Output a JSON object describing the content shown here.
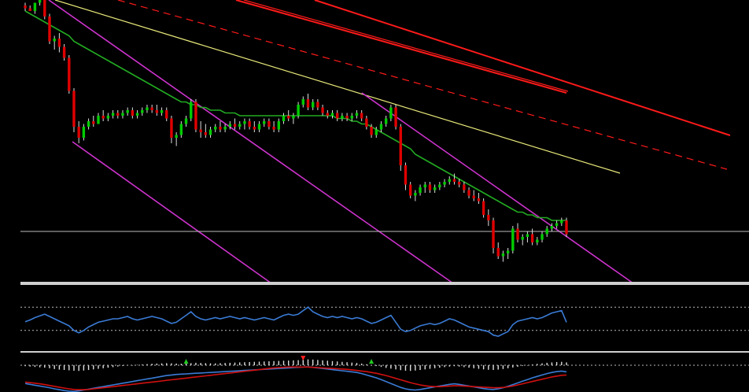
{
  "chart_data": [
    {
      "panel": "price",
      "type": "candlestick",
      "title": "",
      "xlabel": "",
      "ylabel": "",
      "ylim": [
        0,
        100
      ],
      "grid": false,
      "legend": "none",
      "colors": {
        "up": "#00cc00",
        "down": "#e00000",
        "ma": "#22aa22",
        "channel": "#cc33cc",
        "trend_yellow": "#e8e87a",
        "trend_red": "#ff1a1a",
        "support": "#bbbbbb"
      },
      "candles": [
        [
          98,
          99,
          96,
          97
        ],
        [
          97,
          98,
          96,
          96
        ],
        [
          96,
          99,
          95,
          99
        ],
        [
          99,
          101,
          98,
          100
        ],
        [
          100,
          101,
          93,
          94
        ],
        [
          94,
          95,
          84,
          85
        ],
        [
          85,
          87,
          82,
          86
        ],
        [
          86,
          88,
          81,
          83
        ],
        [
          83,
          84,
          78,
          79
        ],
        [
          79,
          80,
          66,
          67
        ],
        [
          67,
          68,
          52,
          54
        ],
        [
          54,
          56,
          48,
          50
        ],
        [
          50,
          55,
          49,
          54
        ],
        [
          54,
          57,
          53,
          56
        ],
        [
          56,
          58,
          54,
          55
        ],
        [
          55,
          59,
          55,
          58
        ],
        [
          58,
          60,
          56,
          57
        ],
        [
          57,
          59,
          56,
          58
        ],
        [
          58,
          60,
          57,
          59
        ],
        [
          59,
          60,
          57,
          58
        ],
        [
          58,
          60,
          57,
          59
        ],
        [
          59,
          61,
          58,
          60
        ],
        [
          60,
          61,
          57,
          58
        ],
        [
          58,
          60,
          57,
          59
        ],
        [
          59,
          61,
          58,
          60
        ],
        [
          60,
          62,
          59,
          61
        ],
        [
          61,
          62,
          59,
          60
        ],
        [
          60,
          62,
          58,
          59
        ],
        [
          59,
          61,
          58,
          60
        ],
        [
          60,
          61,
          56,
          57
        ],
        [
          57,
          58,
          48,
          50
        ],
        [
          50,
          52,
          47,
          51
        ],
        [
          51,
          56,
          50,
          55
        ],
        [
          55,
          58,
          54,
          57
        ],
        [
          57,
          64,
          56,
          63
        ],
        [
          63,
          64,
          52,
          53
        ],
        [
          53,
          56,
          50,
          52
        ],
        [
          52,
          55,
          50,
          51
        ],
        [
          51,
          54,
          50,
          53
        ],
        [
          53,
          55,
          52,
          54
        ],
        [
          54,
          56,
          52,
          53
        ],
        [
          53,
          55,
          52,
          54
        ],
        [
          54,
          56,
          53,
          55
        ],
        [
          55,
          57,
          53,
          54
        ],
        [
          54,
          56,
          53,
          55
        ],
        [
          55,
          57,
          53,
          56
        ],
        [
          56,
          57,
          53,
          54
        ],
        [
          54,
          56,
          52,
          53
        ],
        [
          53,
          56,
          52,
          55
        ],
        [
          55,
          57,
          54,
          56
        ],
        [
          56,
          57,
          53,
          54
        ],
        [
          54,
          56,
          52,
          53
        ],
        [
          53,
          57,
          52,
          56
        ],
        [
          56,
          59,
          55,
          58
        ],
        [
          58,
          60,
          56,
          57
        ],
        [
          57,
          59,
          55,
          58
        ],
        [
          58,
          63,
          57,
          62
        ],
        [
          62,
          65,
          61,
          64
        ],
        [
          64,
          66,
          60,
          61
        ],
        [
          61,
          64,
          60,
          63
        ],
        [
          63,
          64,
          60,
          61
        ],
        [
          61,
          62,
          58,
          59
        ],
        [
          59,
          60,
          57,
          58
        ],
        [
          58,
          60,
          57,
          59
        ],
        [
          59,
          60,
          56,
          57
        ],
        [
          57,
          59,
          56,
          58
        ],
        [
          58,
          59,
          56,
          57
        ],
        [
          57,
          59,
          56,
          58
        ],
        [
          58,
          60,
          57,
          59
        ],
        [
          59,
          60,
          56,
          57
        ],
        [
          57,
          58,
          53,
          54
        ],
        [
          54,
          55,
          50,
          51
        ],
        [
          51,
          54,
          50,
          53
        ],
        [
          53,
          56,
          52,
          55
        ],
        [
          55,
          58,
          54,
          57
        ],
        [
          57,
          62,
          56,
          61
        ],
        [
          61,
          62,
          53,
          54
        ],
        [
          54,
          55,
          38,
          40
        ],
        [
          40,
          41,
          31,
          33
        ],
        [
          33,
          34,
          28,
          29
        ],
        [
          29,
          31,
          27,
          30
        ],
        [
          30,
          33,
          29,
          32
        ],
        [
          32,
          34,
          30,
          33
        ],
        [
          33,
          34,
          30,
          31
        ],
        [
          31,
          33,
          30,
          32
        ],
        [
          32,
          34,
          31,
          33
        ],
        [
          33,
          35,
          32,
          34
        ],
        [
          34,
          36,
          33,
          35
        ],
        [
          35,
          37,
          33,
          34
        ],
        [
          34,
          35,
          32,
          33
        ],
        [
          33,
          34,
          30,
          31
        ],
        [
          31,
          32,
          28,
          29
        ],
        [
          29,
          31,
          27,
          28
        ],
        [
          28,
          30,
          26,
          27
        ],
        [
          27,
          28,
          21,
          22
        ],
        [
          22,
          24,
          18,
          20
        ],
        [
          20,
          21,
          8,
          10
        ],
        [
          10,
          12,
          6,
          7
        ],
        [
          7,
          9,
          5,
          8
        ],
        [
          8,
          10,
          6,
          9
        ],
        [
          9,
          18,
          8,
          17
        ],
        [
          17,
          19,
          12,
          13
        ],
        [
          13,
          15,
          11,
          14
        ],
        [
          14,
          16,
          12,
          15
        ],
        [
          15,
          17,
          11,
          12
        ],
        [
          12,
          14,
          11,
          13
        ],
        [
          13,
          16,
          12,
          15
        ],
        [
          15,
          18,
          14,
          17
        ],
        [
          17,
          19,
          16,
          18
        ],
        [
          18,
          20,
          17,
          19
        ],
        [
          19,
          21,
          18,
          20
        ],
        [
          20,
          21,
          14,
          15
        ]
      ],
      "moving_average": [
        96,
        95,
        94,
        93,
        92,
        91,
        90,
        89,
        88,
        87,
        85,
        84,
        83,
        82,
        81,
        80,
        79,
        78,
        77,
        76,
        75,
        74,
        73,
        72,
        71,
        70,
        69,
        68,
        67,
        66,
        65,
        64,
        63,
        63,
        62,
        62,
        61,
        61,
        60,
        60,
        60,
        59,
        59,
        59,
        58,
        58,
        58,
        58,
        58,
        58,
        58,
        58,
        58,
        58,
        58,
        58,
        58,
        58,
        58,
        58,
        58,
        58,
        58,
        58,
        57,
        57,
        57,
        56,
        56,
        55,
        55,
        54,
        53,
        52,
        51,
        50,
        49,
        48,
        47,
        46,
        44,
        43,
        42,
        41,
        40,
        39,
        38,
        37,
        36,
        35,
        34,
        33,
        32,
        31,
        30,
        29,
        28,
        27,
        26,
        25,
        24,
        23,
        23,
        22,
        22,
        21,
        21,
        21,
        20,
        20,
        20,
        20
      ],
      "support_level": 16
    },
    {
      "panel": "oscillator",
      "type": "line",
      "title": "",
      "xlabel": "",
      "ylabel": "",
      "ylim": [
        0,
        100
      ],
      "levels": [
        70,
        30
      ],
      "series": [
        {
          "color": "#3a7bd5",
          "values": [
            45,
            48,
            52,
            55,
            58,
            54,
            50,
            46,
            42,
            38,
            30,
            26,
            30,
            36,
            40,
            44,
            46,
            48,
            50,
            50,
            52,
            54,
            50,
            48,
            50,
            52,
            54,
            52,
            50,
            46,
            42,
            44,
            50,
            56,
            62,
            54,
            50,
            48,
            50,
            52,
            50,
            52,
            54,
            52,
            50,
            52,
            50,
            48,
            50,
            52,
            50,
            48,
            52,
            56,
            58,
            56,
            58,
            64,
            70,
            62,
            58,
            54,
            52,
            54,
            52,
            54,
            52,
            50,
            52,
            50,
            46,
            42,
            44,
            48,
            52,
            56,
            44,
            32,
            28,
            30,
            34,
            38,
            40,
            42,
            40,
            42,
            46,
            50,
            48,
            44,
            40,
            36,
            34,
            32,
            30,
            28,
            22,
            20,
            24,
            28,
            40,
            46,
            48,
            50,
            52,
            50,
            52,
            56,
            60,
            62,
            64,
            44
          ]
        }
      ]
    },
    {
      "panel": "macd",
      "type": "bar",
      "title": "",
      "xlabel": "",
      "ylabel": "",
      "ylim": [
        -100,
        100
      ],
      "histogram": [
        -10,
        -14,
        -18,
        -22,
        -26,
        -32,
        -40,
        -46,
        -50,
        -54,
        -58,
        -60,
        -56,
        -50,
        -44,
        -38,
        -32,
        -26,
        -20,
        -14,
        -8,
        -4,
        0,
        4,
        8,
        12,
        16,
        18,
        20,
        22,
        20,
        18,
        16,
        18,
        22,
        26,
        24,
        22,
        20,
        20,
        22,
        24,
        26,
        28,
        30,
        32,
        34,
        36,
        38,
        40,
        42,
        44,
        46,
        48,
        50,
        52,
        54,
        58,
        62,
        60,
        56,
        52,
        48,
        44,
        40,
        36,
        32,
        28,
        24,
        18,
        10,
        2,
        -8,
        -18,
        -28,
        -36,
        -44,
        -52,
        -58,
        -60,
        -56,
        -50,
        -44,
        -38,
        -32,
        -26,
        -20,
        -14,
        -10,
        -14,
        -20,
        -26,
        -32,
        -38,
        -44,
        -48,
        -50,
        -46,
        -40,
        -32,
        -24,
        -16,
        -8,
        0,
        8,
        14,
        20,
        26,
        30,
        34,
        36,
        30
      ],
      "series": [
        {
          "color": "#3a7bd5",
          "values": [
            -40,
            -46,
            -52,
            -58,
            -64,
            -70,
            -78,
            -84,
            -90,
            -94,
            -96,
            -92,
            -86,
            -80,
            -74,
            -68,
            -62,
            -56,
            -50,
            -44,
            -38,
            -32,
            -26,
            -20,
            -14,
            -8,
            -2,
            4,
            10,
            16,
            20,
            24,
            26,
            28,
            30,
            32,
            34,
            36,
            38,
            40,
            42,
            44,
            46,
            48,
            50,
            52,
            54,
            56,
            58,
            60,
            62,
            64,
            66,
            68,
            70,
            72,
            74,
            76,
            78,
            74,
            70,
            66,
            62,
            58,
            54,
            50,
            46,
            42,
            38,
            30,
            20,
            10,
            0,
            -12,
            -26,
            -40,
            -54,
            -68,
            -78,
            -84,
            -86,
            -82,
            -76,
            -70,
            -64,
            -58,
            -52,
            -46,
            -42,
            -46,
            -52,
            -58,
            -64,
            -70,
            -76,
            -80,
            -82,
            -78,
            -70,
            -60,
            -48,
            -36,
            -24,
            -12,
            0,
            10,
            20,
            30,
            38,
            44,
            48,
            42
          ]
        },
        {
          "color": "#d01010",
          "values": [
            -30,
            -34,
            -38,
            -42,
            -48,
            -54,
            -60,
            -66,
            -72,
            -78,
            -82,
            -84,
            -84,
            -82,
            -78,
            -74,
            -70,
            -66,
            -62,
            -58,
            -54,
            -50,
            -46,
            -42,
            -38,
            -34,
            -30,
            -26,
            -22,
            -18,
            -14,
            -10,
            -6,
            -2,
            2,
            6,
            10,
            14,
            18,
            22,
            26,
            30,
            34,
            38,
            42,
            46,
            50,
            54,
            58,
            62,
            66,
            70,
            72,
            74,
            76,
            76,
            76,
            76,
            76,
            74,
            72,
            70,
            68,
            66,
            64,
            62,
            60,
            56,
            52,
            48,
            44,
            38,
            32,
            24,
            16,
            6,
            -4,
            -14,
            -24,
            -34,
            -42,
            -50,
            -56,
            -60,
            -62,
            -62,
            -60,
            -58,
            -56,
            -56,
            -58,
            -60,
            -62,
            -64,
            -66,
            -68,
            -70,
            -70,
            -68,
            -64,
            -58,
            -50,
            -42,
            -34,
            -26,
            -18,
            -10,
            -2,
            6,
            12,
            18,
            20
          ]
        }
      ],
      "signal_markers": [
        {
          "index": 57,
          "direction": "down",
          "color": "#ff2020"
        },
        {
          "index": 71,
          "direction": "up",
          "color": "#22cc22"
        },
        {
          "index": 33,
          "direction": "up",
          "color": "#22cc22"
        }
      ]
    }
  ]
}
